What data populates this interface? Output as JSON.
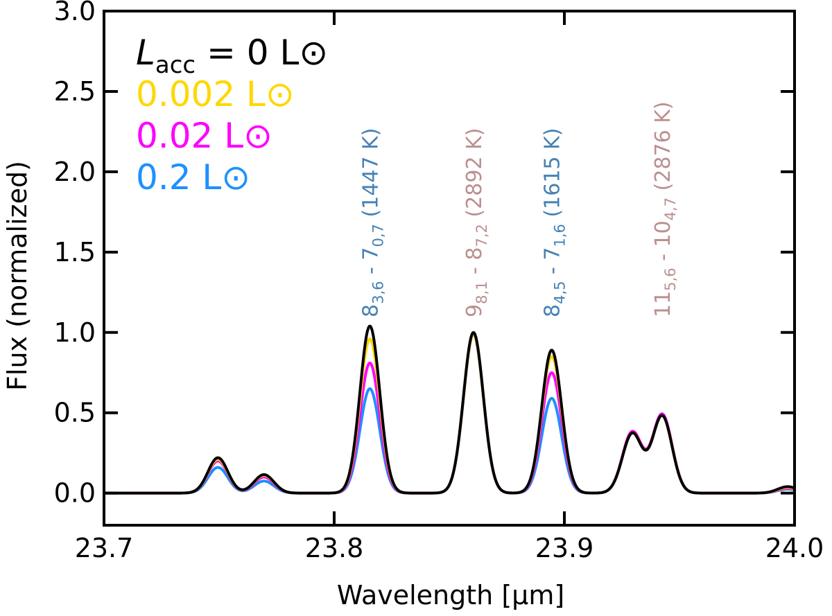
{
  "chart_data": {
    "type": "line",
    "title": "",
    "xlabel": "Wavelength [μm]",
    "ylabel": "Flux (normalized)",
    "xlim": [
      23.7,
      24.0
    ],
    "ylim": [
      -0.2,
      3.0
    ],
    "xticks": [
      23.7,
      23.8,
      23.9,
      24.0
    ],
    "xtick_labels": [
      "23.7",
      "23.8",
      "23.9",
      "24.0"
    ],
    "yticks": [
      0.0,
      0.5,
      1.0,
      1.5,
      2.0,
      2.5,
      3.0
    ],
    "ytick_labels": [
      "0.0",
      "0.5",
      "1.0",
      "1.5",
      "2.0",
      "2.5",
      "3.0"
    ],
    "grid": false,
    "legend_position": "top-left",
    "legend_prefix": {
      "symbol": "L",
      "subscript": "acc",
      "equals": " = "
    },
    "legend_unit": "L⊙",
    "line_width_sigma": 0.0043,
    "series": [
      {
        "name": "0 L⊙",
        "color": "#000000",
        "peaks": [
          {
            "x": 23.7495,
            "amp": 0.22
          },
          {
            "x": 23.7695,
            "amp": 0.115
          },
          {
            "x": 23.8155,
            "amp": 1.04
          },
          {
            "x": 23.8605,
            "amp": 1.0
          },
          {
            "x": 23.8945,
            "amp": 0.89
          },
          {
            "x": 23.9295,
            "amp": 0.37
          },
          {
            "x": 23.9425,
            "amp": 0.48
          },
          {
            "x": 23.997,
            "amp": 0.04
          }
        ]
      },
      {
        "name": "0.002 L⊙",
        "color": "#FFD700",
        "peaks": [
          {
            "x": 23.7495,
            "amp": 0.21
          },
          {
            "x": 23.7695,
            "amp": 0.11
          },
          {
            "x": 23.8155,
            "amp": 0.96
          },
          {
            "x": 23.8605,
            "amp": 0.99
          },
          {
            "x": 23.8945,
            "amp": 0.85
          },
          {
            "x": 23.9295,
            "amp": 0.37
          },
          {
            "x": 23.9425,
            "amp": 0.48
          },
          {
            "x": 23.997,
            "amp": 0.035
          }
        ]
      },
      {
        "name": "0.02 L⊙",
        "color": "#FF00FF",
        "peaks": [
          {
            "x": 23.7495,
            "amp": 0.2
          },
          {
            "x": 23.7695,
            "amp": 0.1
          },
          {
            "x": 23.8155,
            "amp": 0.81
          },
          {
            "x": 23.8605,
            "amp": 0.99
          },
          {
            "x": 23.8945,
            "amp": 0.75
          },
          {
            "x": 23.9295,
            "amp": 0.38
          },
          {
            "x": 23.9425,
            "amp": 0.49
          },
          {
            "x": 23.997,
            "amp": 0.03
          }
        ]
      },
      {
        "name": "0.2 L⊙",
        "color": "#1E90FF",
        "peaks": [
          {
            "x": 23.7495,
            "amp": 0.16
          },
          {
            "x": 23.7695,
            "amp": 0.075
          },
          {
            "x": 23.8155,
            "amp": 0.65
          },
          {
            "x": 23.8605,
            "amp": 0.99
          },
          {
            "x": 23.8945,
            "amp": 0.59
          },
          {
            "x": 23.9295,
            "amp": 0.37
          },
          {
            "x": 23.9425,
            "amp": 0.48
          },
          {
            "x": 23.997,
            "amp": 0.025
          }
        ]
      }
    ],
    "annotations": [
      {
        "x": 23.8155,
        "color": "#4682B4",
        "upper": {
          "main": "8",
          "sub": "3,6"
        },
        "lower": {
          "main": "7",
          "sub": "0,7"
        },
        "temp": "(1447 K)"
      },
      {
        "x": 23.8605,
        "color": "#BC8F8F",
        "upper": {
          "main": "9",
          "sub": "8,1"
        },
        "lower": {
          "main": "8",
          "sub": "7,2"
        },
        "temp": "(2892 K)"
      },
      {
        "x": 23.8945,
        "color": "#4682B4",
        "upper": {
          "main": "8",
          "sub": "4,5"
        },
        "lower": {
          "main": "7",
          "sub": "1,6"
        },
        "temp": "(1615 K)"
      },
      {
        "x": 23.9425,
        "color": "#BC8F8F",
        "upper": {
          "main": "11",
          "sub": "5,6"
        },
        "lower": {
          "main": "10",
          "sub": "4,7"
        },
        "temp": "(2876 K)"
      }
    ],
    "annotation_separator": " - "
  }
}
